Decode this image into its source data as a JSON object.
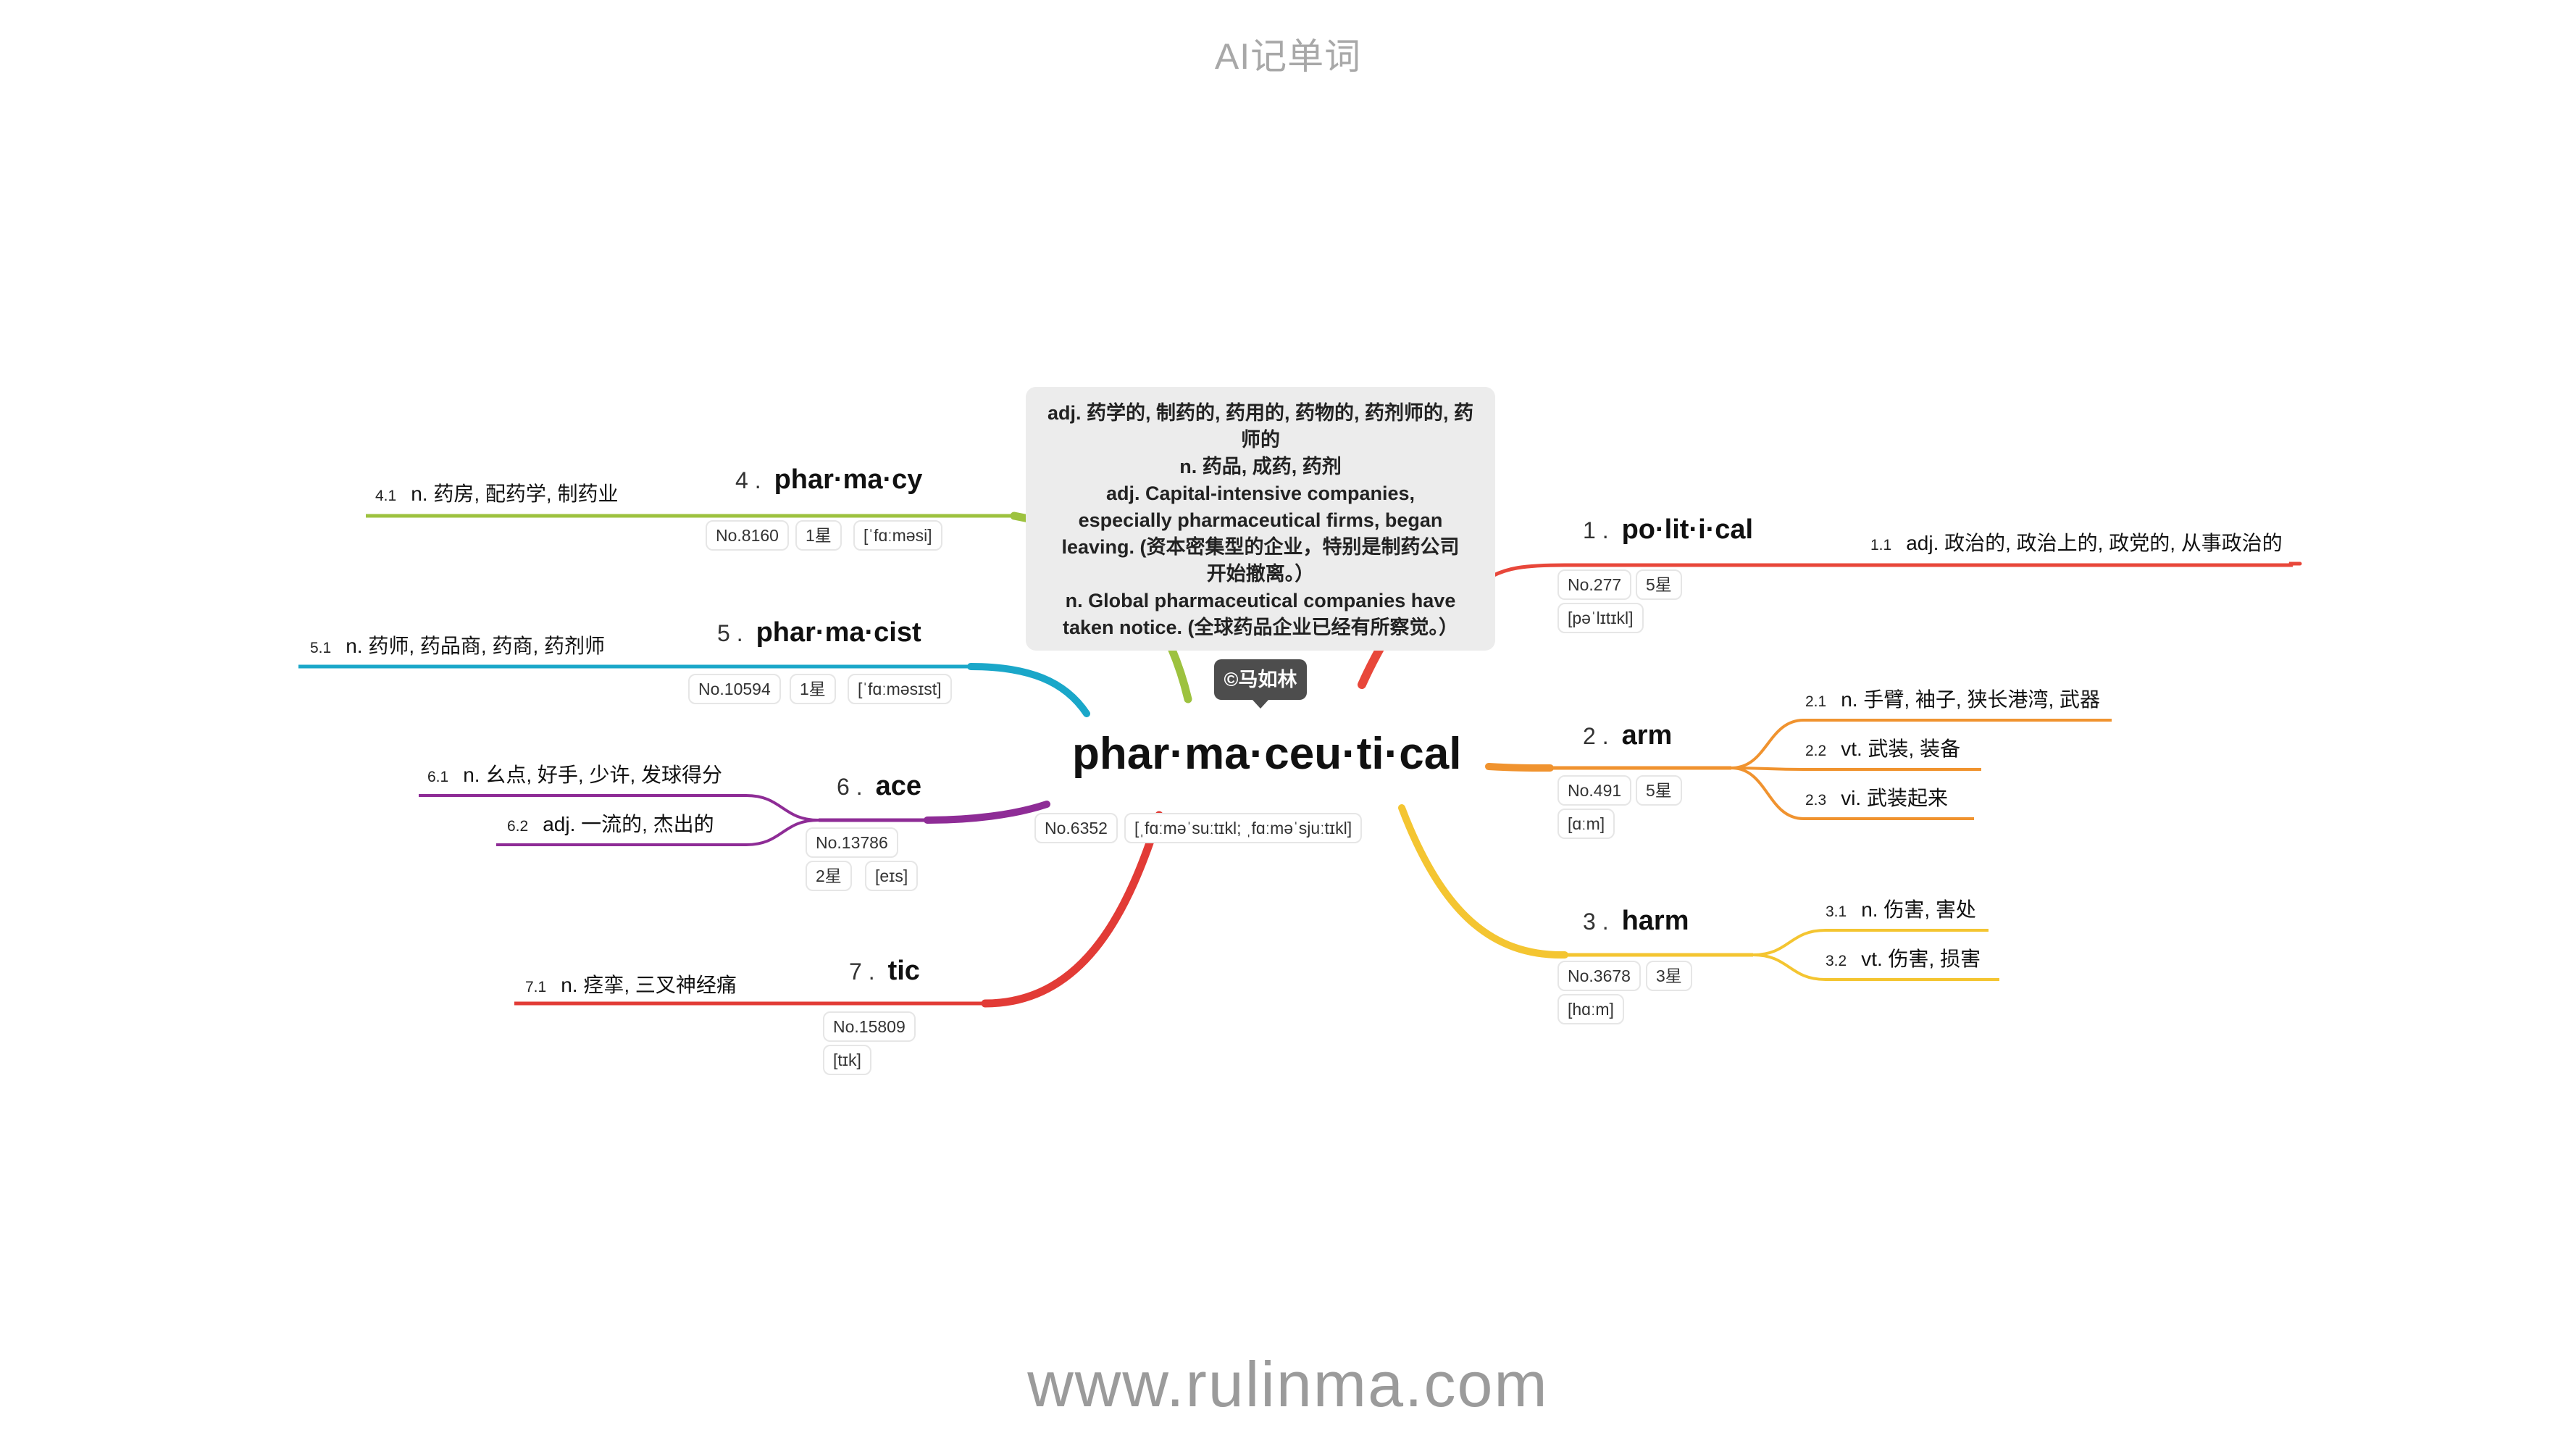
{
  "header": {
    "title": "AI记单词"
  },
  "footer": {
    "url": "www.rulinma.com"
  },
  "center": {
    "word": "phar·ma·ceu·ti·cal",
    "rank": "No.6352",
    "phonetic": "[ˌfɑːməˈsuːtɪkl; ˌfɑːməˈsjuːtɪkl]",
    "author": "©马如林",
    "popup": [
      "adj. 药学的, 制药的, 药用的, 药物的, 药剂师的, 药",
      "师的",
      "n. 药品, 成药, 药剂",
      "adj. Capital-intensive companies,",
      "especially pharmaceutical firms, began",
      "leaving. (资本密集型的企业，特别是制药公司",
      "开始撤离。）",
      "n. Global pharmaceutical companies have",
      "taken notice. (全球药品企业已经有所察觉。）"
    ]
  },
  "branches": [
    {
      "num": "1 .",
      "word": "po·lit·i·cal",
      "rank": "No.277",
      "stars": "5星",
      "phonetic": "[pəˈlɪtɪkl]",
      "color": "#e8473a",
      "senses": [
        {
          "num": "1.1",
          "text": "adj. 政治的, 政治上的, 政党的, 从事政治的"
        }
      ]
    },
    {
      "num": "2 .",
      "word": "arm",
      "rank": "No.491",
      "stars": "5星",
      "phonetic": "[ɑːm]",
      "color": "#f0932f",
      "senses": [
        {
          "num": "2.1",
          "text": "n. 手臂, 袖子, 狭长港湾, 武器"
        },
        {
          "num": "2.2",
          "text": "vt. 武装, 装备"
        },
        {
          "num": "2.3",
          "text": "vi. 武装起来"
        }
      ]
    },
    {
      "num": "3 .",
      "word": "harm",
      "rank": "No.3678",
      "stars": "3星",
      "phonetic": "[hɑːm]",
      "color": "#f4c531",
      "senses": [
        {
          "num": "3.1",
          "text": "n. 伤害, 害处"
        },
        {
          "num": "3.2",
          "text": "vt. 伤害, 损害"
        }
      ]
    },
    {
      "num": "4 .",
      "word": "phar·ma·cy",
      "rank": "No.8160",
      "stars": "1星",
      "phonetic": "[ˈfɑːməsi]",
      "color": "#9dc23f",
      "senses": [
        {
          "num": "4.1",
          "text": "n. 药房, 配药学, 制药业"
        }
      ]
    },
    {
      "num": "5 .",
      "word": "phar·ma·cist",
      "rank": "No.10594",
      "stars": "1星",
      "phonetic": "[ˈfɑːməsɪst]",
      "color": "#1aa7c9",
      "senses": [
        {
          "num": "5.1",
          "text": "n. 药师, 药品商, 药商, 药剂师"
        }
      ]
    },
    {
      "num": "6 .",
      "word": "ace",
      "rank": "No.13786",
      "stars": "2星",
      "phonetic": "[eɪs]",
      "color": "#8e2c96",
      "senses": [
        {
          "num": "6.1",
          "text": "n. 幺点, 好手, 少许, 发球得分"
        },
        {
          "num": "6.2",
          "text": "adj. 一流的, 杰出的"
        }
      ]
    },
    {
      "num": "7 .",
      "word": "tic",
      "rank": "No.15809",
      "stars": "",
      "phonetic": "[tɪk]",
      "color": "#e23b36",
      "senses": [
        {
          "num": "7.1",
          "text": "n. 痉挛, 三叉神经痛"
        }
      ]
    }
  ]
}
